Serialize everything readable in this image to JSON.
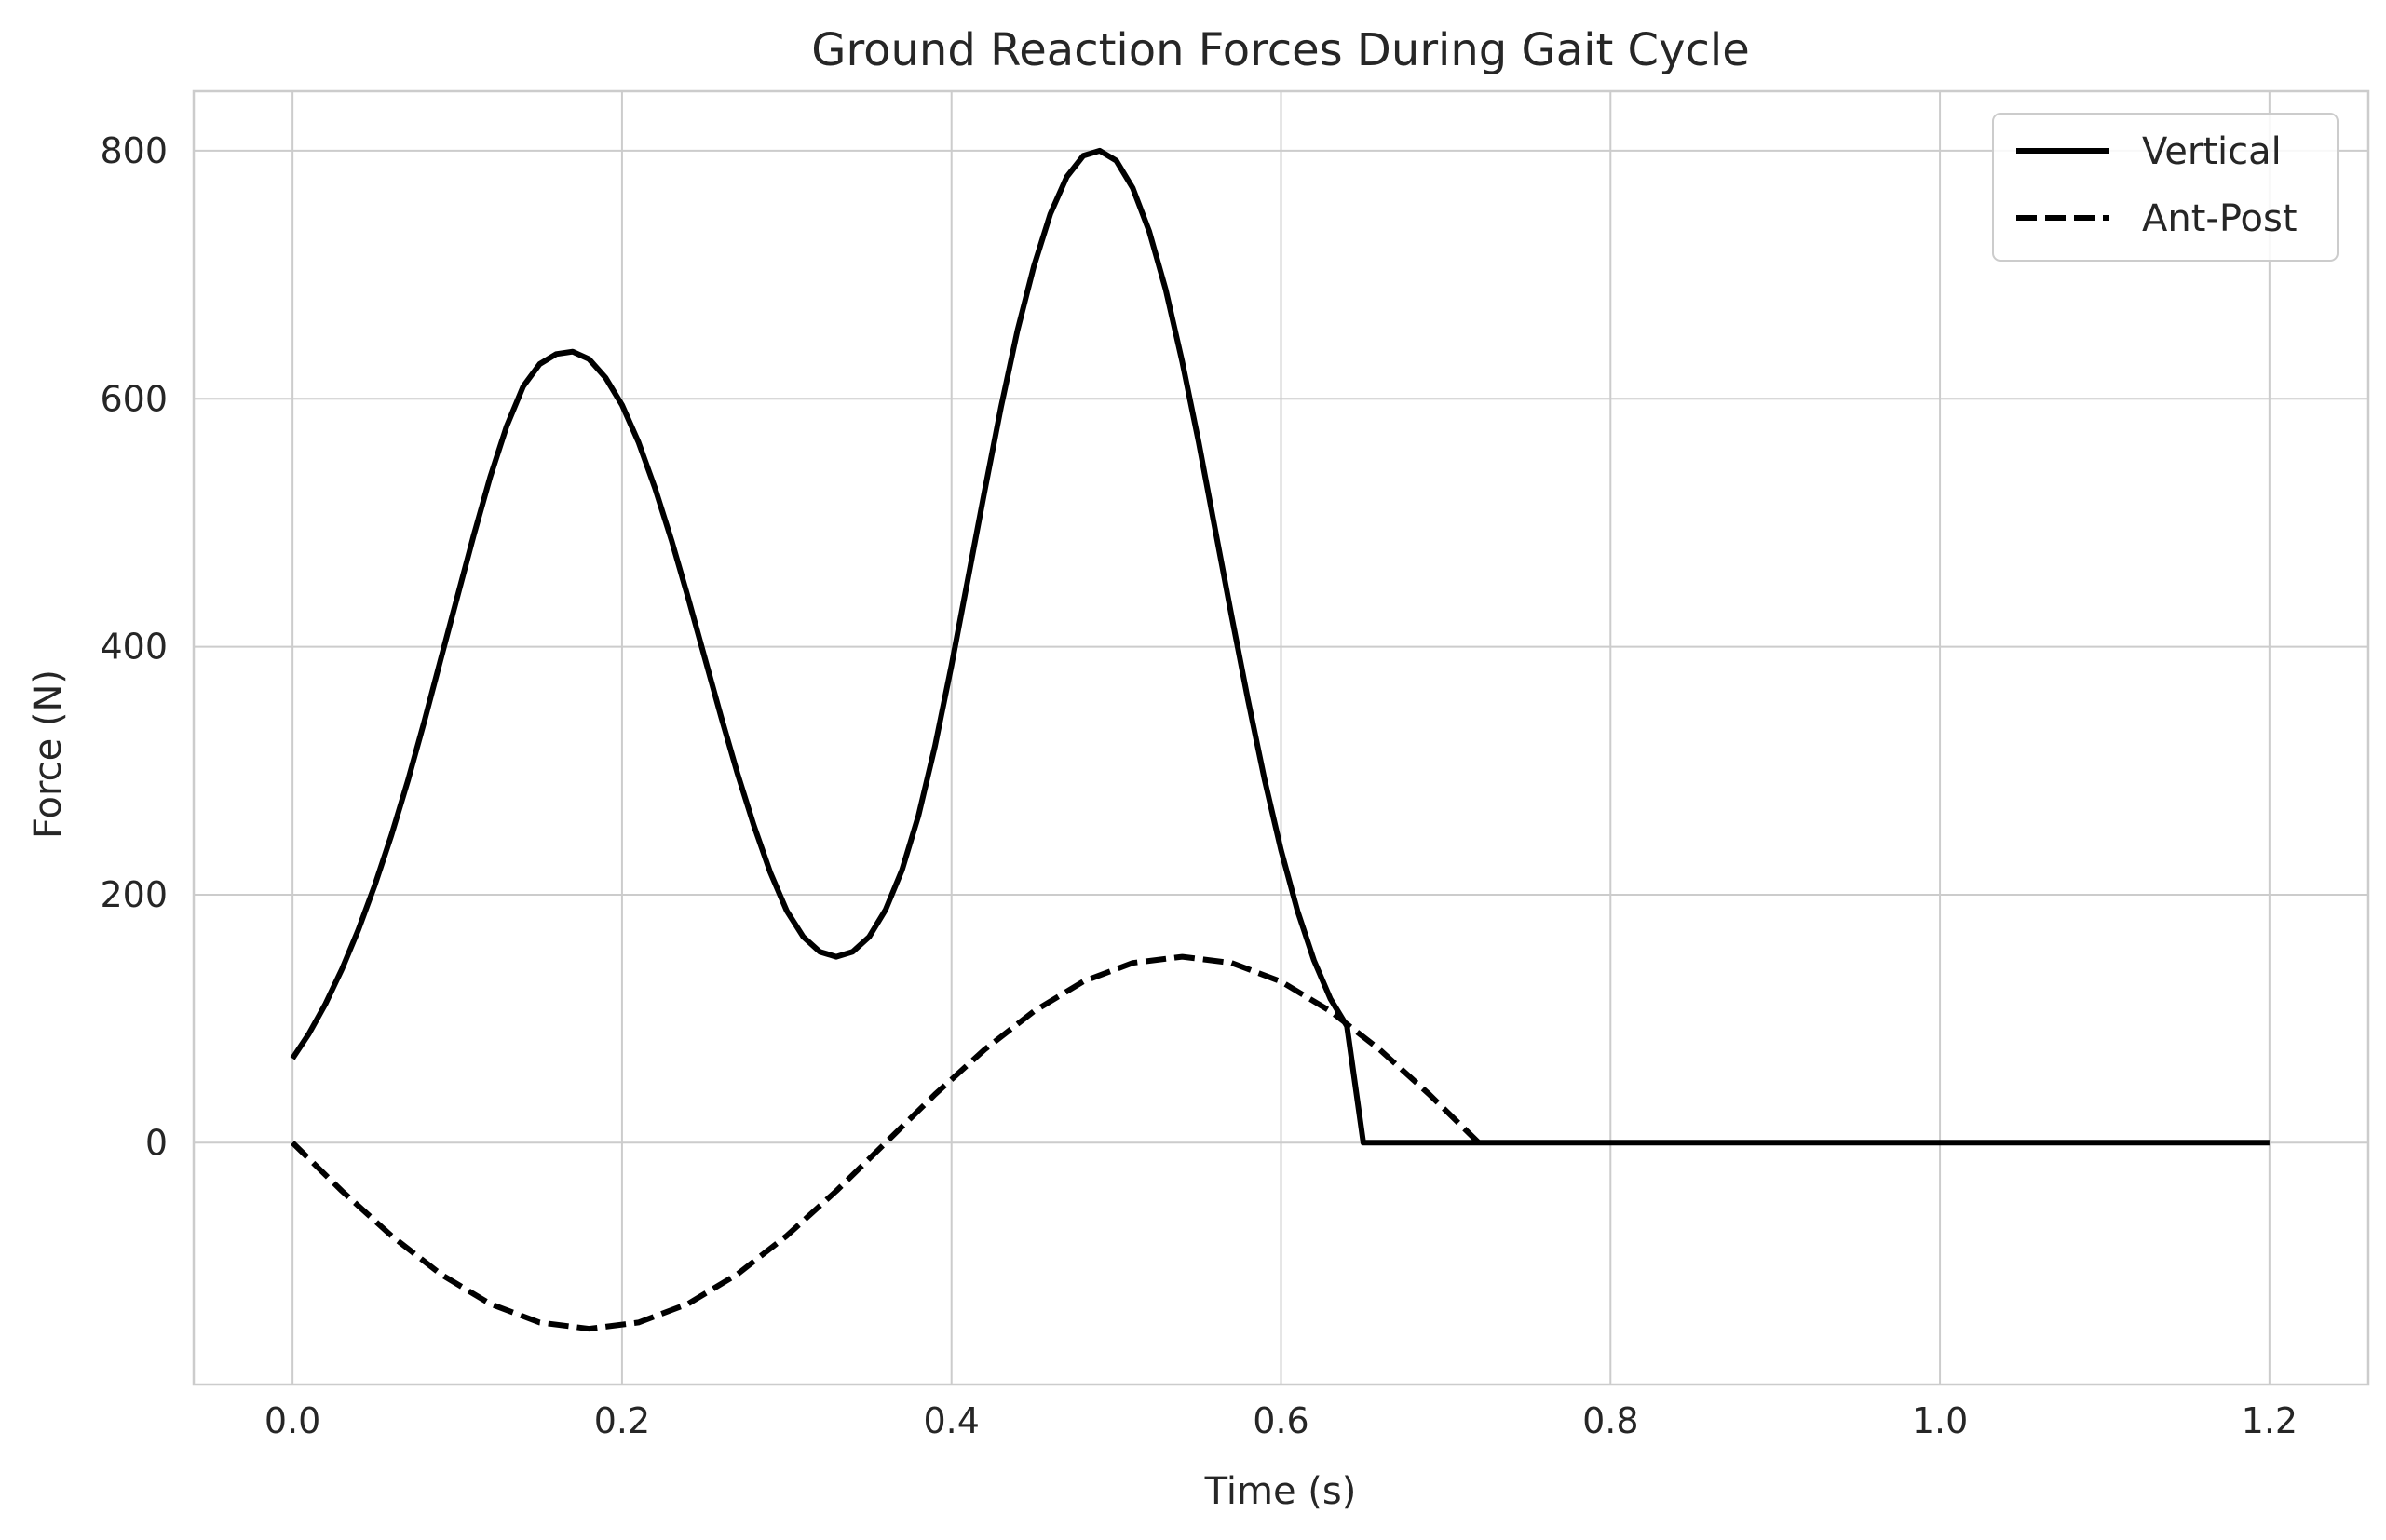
{
  "chart_data": {
    "type": "line",
    "title": "Ground Reaction Forces During Gait Cycle",
    "xlabel": "Time (s)",
    "ylabel": "Force (N)",
    "xlim": [
      -0.06,
      1.26
    ],
    "ylim": [
      -195,
      848
    ],
    "xticks": [
      0.0,
      0.2,
      0.4,
      0.6,
      0.8,
      1.0,
      1.2
    ],
    "xtick_labels": [
      "0.0",
      "0.2",
      "0.4",
      "0.6",
      "0.8",
      "1.0",
      "1.2"
    ],
    "yticks": [
      0,
      200,
      400,
      600,
      800
    ],
    "ytick_labels": [
      "0",
      "200",
      "400",
      "600",
      "800"
    ],
    "grid": true,
    "legend_position": "top-right",
    "series": [
      {
        "name": "Vertical",
        "style": "solid",
        "color": "#000000",
        "x": [
          0.0,
          0.01,
          0.02,
          0.03,
          0.04,
          0.05,
          0.06,
          0.07,
          0.08,
          0.09,
          0.1,
          0.11,
          0.12,
          0.13,
          0.14,
          0.15,
          0.16,
          0.17,
          0.18,
          0.19,
          0.2,
          0.21,
          0.22,
          0.23,
          0.24,
          0.25,
          0.26,
          0.27,
          0.28,
          0.29,
          0.3,
          0.31,
          0.32,
          0.33,
          0.34,
          0.35,
          0.36,
          0.37,
          0.38,
          0.39,
          0.4,
          0.41,
          0.42,
          0.43,
          0.44,
          0.45,
          0.46,
          0.47,
          0.48,
          0.49,
          0.5,
          0.51,
          0.52,
          0.53,
          0.54,
          0.55,
          0.56,
          0.57,
          0.58,
          0.59,
          0.6,
          0.61,
          0.62,
          0.63,
          0.64,
          0.65,
          0.66,
          0.67,
          0.68,
          0.69,
          0.7,
          0.71,
          0.72,
          0.727,
          0.8,
          0.9,
          1.0,
          1.1,
          1.2
        ],
        "values": [
          68,
          88,
          112,
          140,
          172,
          208,
          248,
          292,
          340,
          390,
          440,
          490,
          537,
          578,
          610,
          628,
          636,
          638,
          632,
          617,
          595,
          565,
          528,
          486,
          440,
          392,
          344,
          298,
          256,
          218,
          187,
          166,
          154,
          150,
          154,
          166,
          188,
          220,
          264,
          320,
          385,
          455,
          525,
          593,
          655,
          707,
          749,
          779,
          796,
          800,
          792,
          770,
          735,
          688,
          630,
          565,
          495,
          425,
          357,
          293,
          236,
          187,
          147,
          116,
          94,
          0,
          0,
          0,
          0,
          0,
          0,
          0,
          0,
          0,
          0,
          0,
          0,
          0,
          0
        ]
      },
      {
        "name": "Ant-Post",
        "style": "dashed",
        "color": "#000000",
        "x": [
          0.0,
          0.03,
          0.06,
          0.09,
          0.12,
          0.15,
          0.18,
          0.21,
          0.24,
          0.27,
          0.3,
          0.33,
          0.36,
          0.39,
          0.42,
          0.45,
          0.48,
          0.51,
          0.54,
          0.57,
          0.6,
          0.63,
          0.66,
          0.69,
          0.72
        ],
        "values": [
          0,
          -39,
          -75,
          -106,
          -130,
          -145,
          -150,
          -145,
          -130,
          -106,
          -75,
          -39,
          0,
          39,
          75,
          106,
          130,
          145,
          150,
          145,
          130,
          106,
          75,
          39,
          0
        ]
      }
    ]
  }
}
